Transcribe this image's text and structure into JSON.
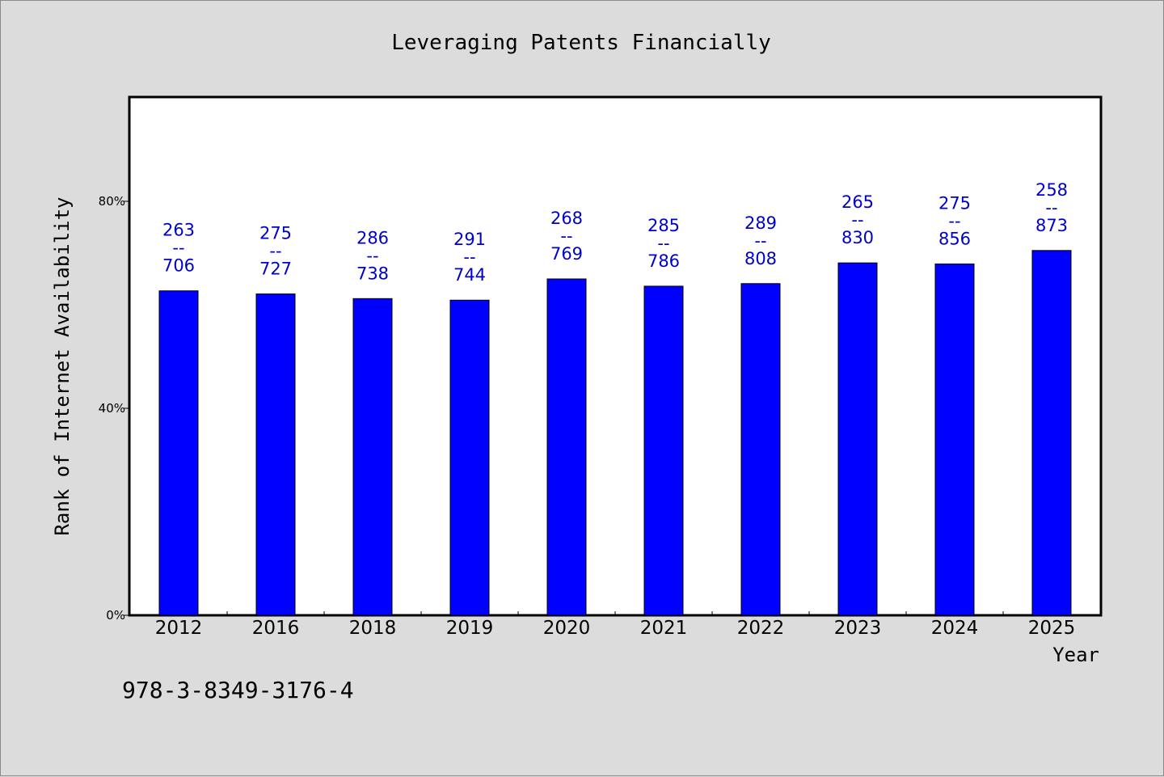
{
  "chart_data": {
    "type": "bar",
    "title": "Leveraging Patents Financially",
    "xlabel": "Year",
    "ylabel": "Rank of Internet Availability",
    "categories": [
      "2012",
      "2016",
      "2018",
      "2019",
      "2020",
      "2021",
      "2022",
      "2023",
      "2024",
      "2025"
    ],
    "values": [
      62.7,
      62.1,
      61.2,
      60.9,
      65.0,
      63.6,
      64.1,
      68.1,
      67.9,
      70.5
    ],
    "bar_labels": [
      {
        "top": "263",
        "sep": "--",
        "bottom": "706"
      },
      {
        "top": "275",
        "sep": "--",
        "bottom": "727"
      },
      {
        "top": "286",
        "sep": "--",
        "bottom": "738"
      },
      {
        "top": "291",
        "sep": "--",
        "bottom": "744"
      },
      {
        "top": "268",
        "sep": "--",
        "bottom": "769"
      },
      {
        "top": "285",
        "sep": "--",
        "bottom": "786"
      },
      {
        "top": "289",
        "sep": "--",
        "bottom": "808"
      },
      {
        "top": "265",
        "sep": "--",
        "bottom": "830"
      },
      {
        "top": "275",
        "sep": "--",
        "bottom": "856"
      },
      {
        "top": "258",
        "sep": "--",
        "bottom": "873"
      }
    ],
    "ylim": [
      0,
      100
    ],
    "yticks": [
      {
        "value": 0,
        "label": "0%"
      },
      {
        "value": 40,
        "label": "40%"
      },
      {
        "value": 80,
        "label": "80%"
      }
    ],
    "grid": false,
    "bar_color": "#0000ff",
    "label_color": "#0000cc",
    "background": "#dcdcdc",
    "plot_background": "#ffffff"
  },
  "footer": {
    "isbn": "978-3-8349-3176-4"
  }
}
